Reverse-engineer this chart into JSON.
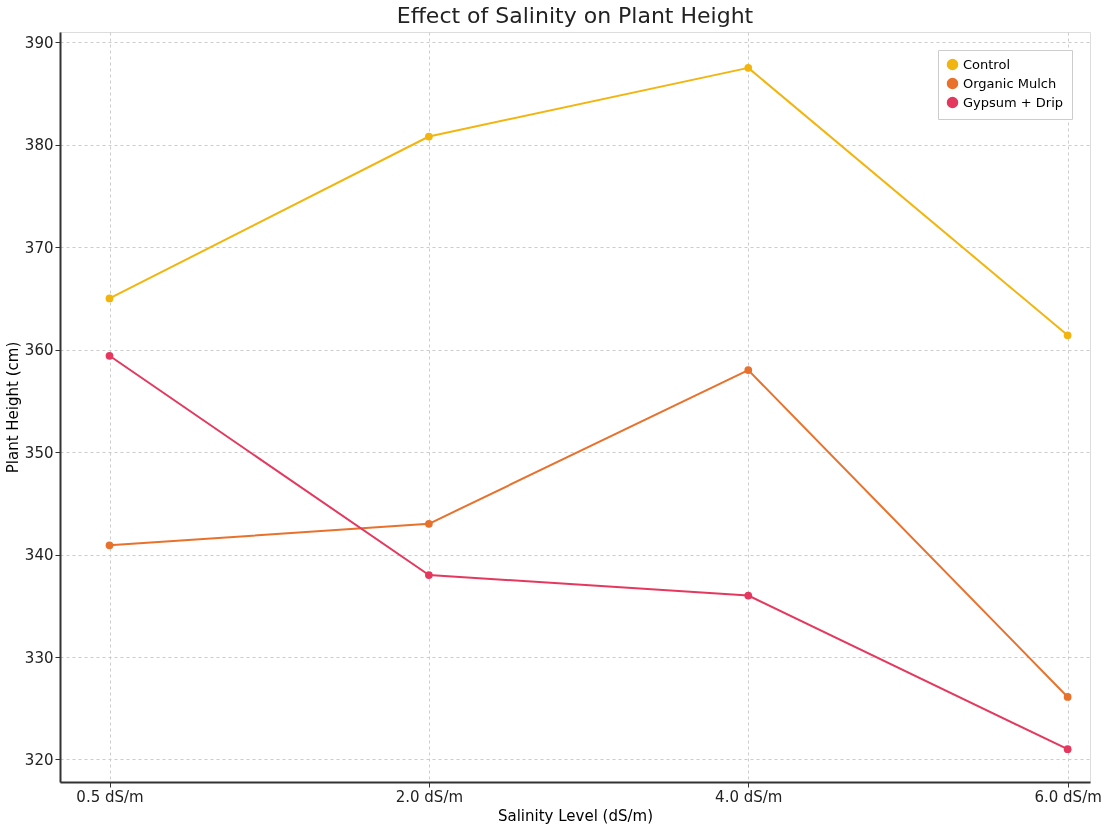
{
  "chart_data": {
    "type": "line",
    "title": "Effect of Salinity on Plant Height",
    "xlabel": "Salinity Level (dS/m)",
    "ylabel": "Plant Height (cm)",
    "categories": [
      "0.5 dS/m",
      "2.0 dS/m",
      "4.0 dS/m",
      "6.0 dS/m"
    ],
    "series": [
      {
        "name": "Control",
        "color": "#f2b50f",
        "values": [
          365.0,
          380.8,
          387.5,
          361.4
        ]
      },
      {
        "name": "Organic Mulch",
        "color": "#e8712c",
        "values": [
          340.9,
          343.0,
          358.0,
          326.1
        ]
      },
      {
        "name": "Gypsum + Drip",
        "color": "#e5385e",
        "values": [
          359.4,
          338.0,
          336.0,
          321.0
        ]
      }
    ],
    "ylim": [
      317.8,
      391.0
    ],
    "yticks": [
      320,
      330,
      340,
      350,
      360,
      370,
      380,
      390
    ],
    "grid": true,
    "legend": "top right",
    "marker": "circle",
    "line_style": "solid"
  }
}
